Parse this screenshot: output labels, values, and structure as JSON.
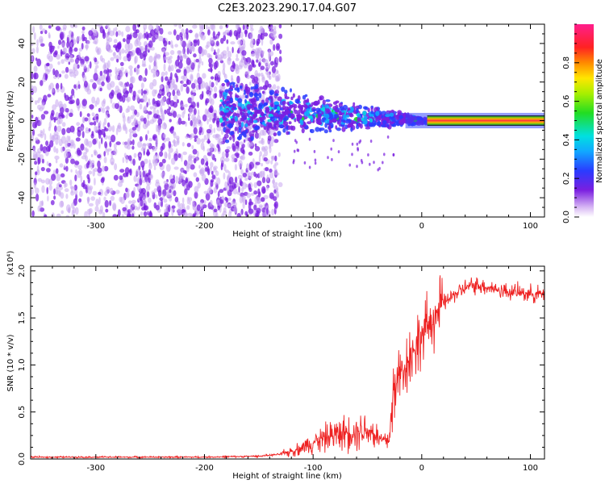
{
  "title": "C2E3.2023.290.17.04.G07",
  "colors": {
    "snr_line": "#ee2222",
    "stripe_core": "#ff2a4a",
    "stripe_edge": "#22cc22",
    "speckle": "#7a1fe0",
    "speckle_light": "#c8a8f0"
  },
  "chart_data": [
    {
      "type": "heatmap",
      "xlabel": "Height of straight line (km)",
      "ylabel": "Frequency (Hz)",
      "xlim": [
        -360,
        113
      ],
      "ylim": [
        -50,
        50
      ],
      "x_ticks": [
        -300,
        -200,
        -100,
        0,
        100
      ],
      "x_tick_labels": [
        "-300",
        "-200",
        "-100",
        "0",
        "100"
      ],
      "y_ticks": [
        -40,
        -20,
        0,
        20,
        40
      ],
      "y_tick_labels": [
        "-40",
        "-20",
        "0",
        "20",
        "40"
      ],
      "colorbar": {
        "label": "Normalized spectral amplitude",
        "range": [
          0.0,
          1.0
        ],
        "ticks": [
          0.0,
          0.2,
          0.4,
          0.6,
          0.8
        ],
        "tick_labels": [
          "0.0",
          "0.2",
          "0.4",
          "0.6",
          "0.8"
        ],
        "colormap": "rainbow (white-purple-blue-cyan-green-yellow-red-magenta)"
      },
      "regions": [
        {
          "x_range": [
            -360,
            -140
          ],
          "description": "broadband purple noise over full frequency range"
        },
        {
          "x_range": [
            -180,
            5
          ],
          "description": "signal converging toward 0 Hz"
        },
        {
          "x_range": [
            5,
            113
          ],
          "description": "narrow strong stripe at 0 Hz"
        }
      ],
      "grid": false
    },
    {
      "type": "line",
      "xlabel": "Height of straight line (km)",
      "ylabel": "SNR (10 * v/v)",
      "scale_note": "(x10⁴)",
      "xlim": [
        -360,
        113
      ],
      "ylim": [
        0,
        2.05
      ],
      "x_ticks": [
        -300,
        -200,
        -100,
        0,
        100
      ],
      "x_tick_labels": [
        "-300",
        "-200",
        "-100",
        "0",
        "100"
      ],
      "y_ticks": [
        0.0,
        0.5,
        1.0,
        1.5,
        2.0
      ],
      "y_tick_labels": [
        "0.0",
        "0.5",
        "1.0",
        "1.5",
        "2.0"
      ],
      "series": [
        {
          "x": [
            -360,
            -300,
            -250,
            -200,
            -150,
            -130,
            -120,
            -110,
            -100,
            -90,
            -80,
            -70,
            -60,
            -50,
            -45,
            -40,
            -35,
            -30,
            -25,
            -20,
            -15,
            -10,
            -5,
            0,
            10,
            20,
            30,
            40,
            50,
            60,
            70,
            80,
            90,
            100,
            113
          ],
          "values": [
            0.02,
            0.02,
            0.02,
            0.02,
            0.03,
            0.05,
            0.08,
            0.12,
            0.18,
            0.22,
            0.26,
            0.28,
            0.3,
            0.32,
            0.28,
            0.22,
            0.2,
            0.2,
            0.8,
            0.9,
            1.0,
            1.1,
            1.2,
            1.3,
            1.5,
            1.65,
            1.75,
            1.82,
            1.85,
            1.83,
            1.8,
            1.78,
            1.77,
            1.76,
            1.75
          ]
        }
      ],
      "grid": false
    }
  ]
}
